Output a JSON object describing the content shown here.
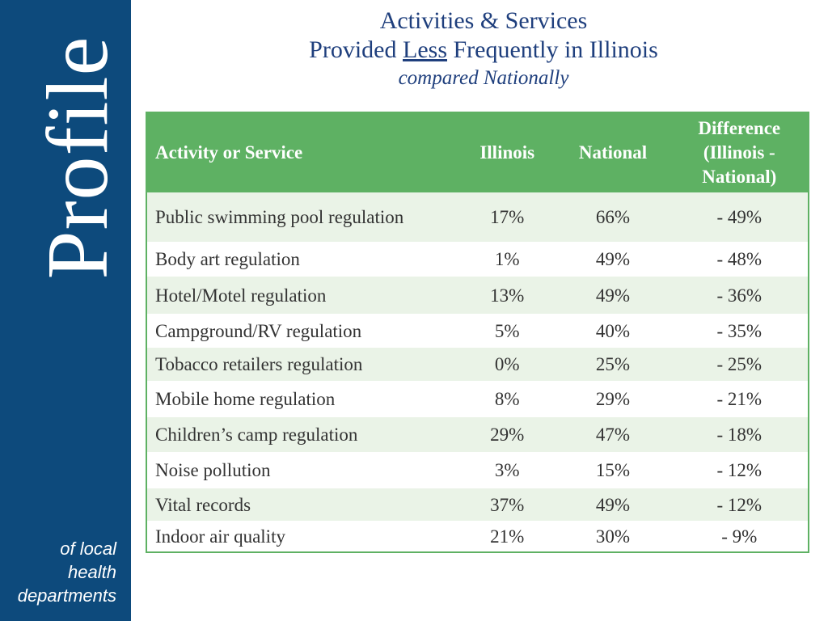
{
  "sidebar": {
    "vertical_title": "Profile",
    "subtitle_lines": [
      "of local",
      "health",
      "departments"
    ]
  },
  "title": {
    "line1": "Activities & Services",
    "line2_before": "Provided ",
    "line2_underlined": "Less",
    "line2_after": " Frequently in Illinois",
    "line3": "compared Nationally"
  },
  "table": {
    "headers": {
      "activity": "Activity or Service",
      "illinois": "Illinois",
      "national": "National",
      "difference_line1": "Difference",
      "difference_line2": "(Illinois -",
      "difference_line3": "National)"
    },
    "rows": [
      {
        "activity": "Public swimming pool regulation",
        "illinois": "17%",
        "national": "66%",
        "difference": "- 49%"
      },
      {
        "activity": "Body art regulation",
        "illinois": "1%",
        "national": "49%",
        "difference": "- 48%"
      },
      {
        "activity": "Hotel/Motel regulation",
        "illinois": "13%",
        "national": "49%",
        "difference": "- 36%"
      },
      {
        "activity": "Campground/RV regulation",
        "illinois": "5%",
        "national": "40%",
        "difference": "- 35%"
      },
      {
        "activity": "Tobacco retailers regulation",
        "illinois": "0%",
        "national": "25%",
        "difference": "- 25%"
      },
      {
        "activity": "Mobile home regulation",
        "illinois": "8%",
        "national": "29%",
        "difference": "- 21%"
      },
      {
        "activity": "Children’s camp regulation",
        "illinois": "29%",
        "national": "47%",
        "difference": "- 18%"
      },
      {
        "activity": "Noise pollution",
        "illinois": "3%",
        "national": "15%",
        "difference": "- 12%"
      },
      {
        "activity": "Vital records",
        "illinois": "37%",
        "national": "49%",
        "difference": "- 12%"
      },
      {
        "activity": "Indoor air quality",
        "illinois": "21%",
        "national": "30%",
        "difference": "- 9%"
      }
    ]
  },
  "colors": {
    "sidebar": "#0d4a7c",
    "header_green": "#5eb163",
    "row_alt": "#eaf3e7",
    "title_blue": "#1f3f7d"
  }
}
